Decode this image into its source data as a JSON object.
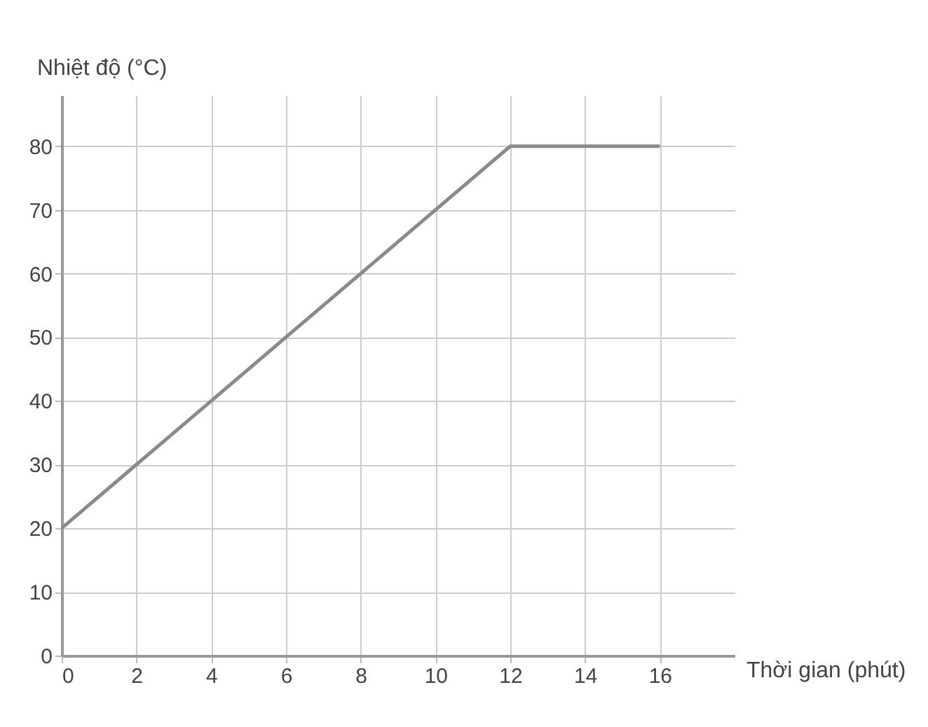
{
  "chart_data": {
    "type": "line",
    "xlabel": "Thời gian (phút)",
    "ylabel": "Nhiệt độ (°C)",
    "x": [
      0,
      2,
      4,
      6,
      8,
      10,
      12,
      16
    ],
    "series": [
      {
        "color": "#8a8a8a",
        "values": [
          20,
          30,
          40,
          50,
          60,
          70,
          80,
          80
        ]
      }
    ],
    "xlim": [
      0,
      18
    ],
    "ylim": [
      0,
      88
    ],
    "xticks": [
      0,
      2,
      4,
      6,
      8,
      10,
      12,
      14,
      16
    ],
    "yticks": [
      0,
      10,
      20,
      30,
      40,
      50,
      60,
      70,
      80
    ],
    "grid": true
  }
}
